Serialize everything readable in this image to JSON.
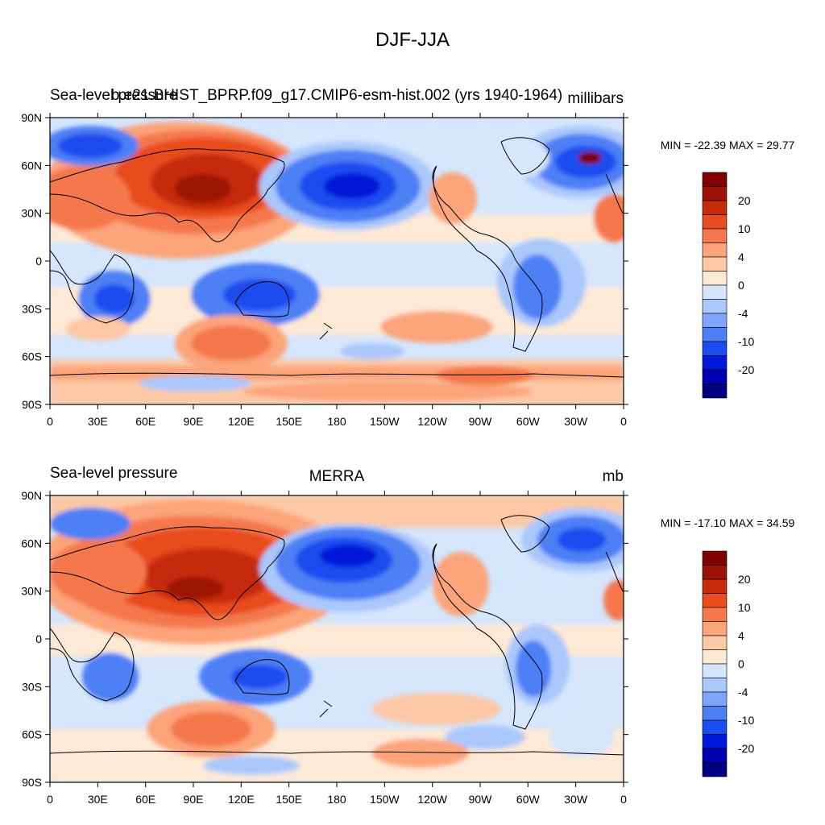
{
  "figure_title": "DJF-JJA",
  "colors": {
    "levels": [
      "#000080",
      "#0000b3",
      "#0019d9",
      "#1a4cf0",
      "#4d7ff5",
      "#7fa5fa",
      "#aac8fc",
      "#d5e6fd",
      "#fde9d6",
      "#fdc8a6",
      "#fca47a",
      "#f5784d",
      "#e84c1f",
      "#c62a08",
      "#9c1204",
      "#800000"
    ],
    "coast": "#000000"
  },
  "colorbar": {
    "labels": [
      "20",
      "10",
      "4",
      "0",
      "-4",
      "-10",
      "-20"
    ]
  },
  "panels": [
    {
      "left_string": "Sea-level pressure",
      "center_string": "b.e21.BHIST_BPRP.f09_g17.CMIP6-esm-hist.002 (yrs 1940-1964)",
      "right_string": "millibars",
      "minmax": "MIN = -22.39 MAX =  29.77",
      "lon_ticks": [
        "0",
        "30E",
        "60E",
        "90E",
        "120E",
        "150E",
        "180",
        "150W",
        "120W",
        "90W",
        "60W",
        "30W",
        "0"
      ],
      "lat_ticks": [
        "90N",
        "60N",
        "30N",
        "0",
        "30S",
        "60S",
        "90S"
      ]
    },
    {
      "left_string": "Sea-level pressure",
      "center_string": "MERRA",
      "right_string": "mb",
      "minmax": "MIN = -17.10 MAX =  34.59",
      "lon_ticks": [
        "0",
        "30E",
        "60E",
        "90E",
        "120E",
        "150E",
        "180",
        "150W",
        "120W",
        "90W",
        "60W",
        "30W",
        "0"
      ],
      "lat_ticks": [
        "90N",
        "60N",
        "30N",
        "0",
        "30S",
        "60S",
        "90S"
      ]
    }
  ]
}
